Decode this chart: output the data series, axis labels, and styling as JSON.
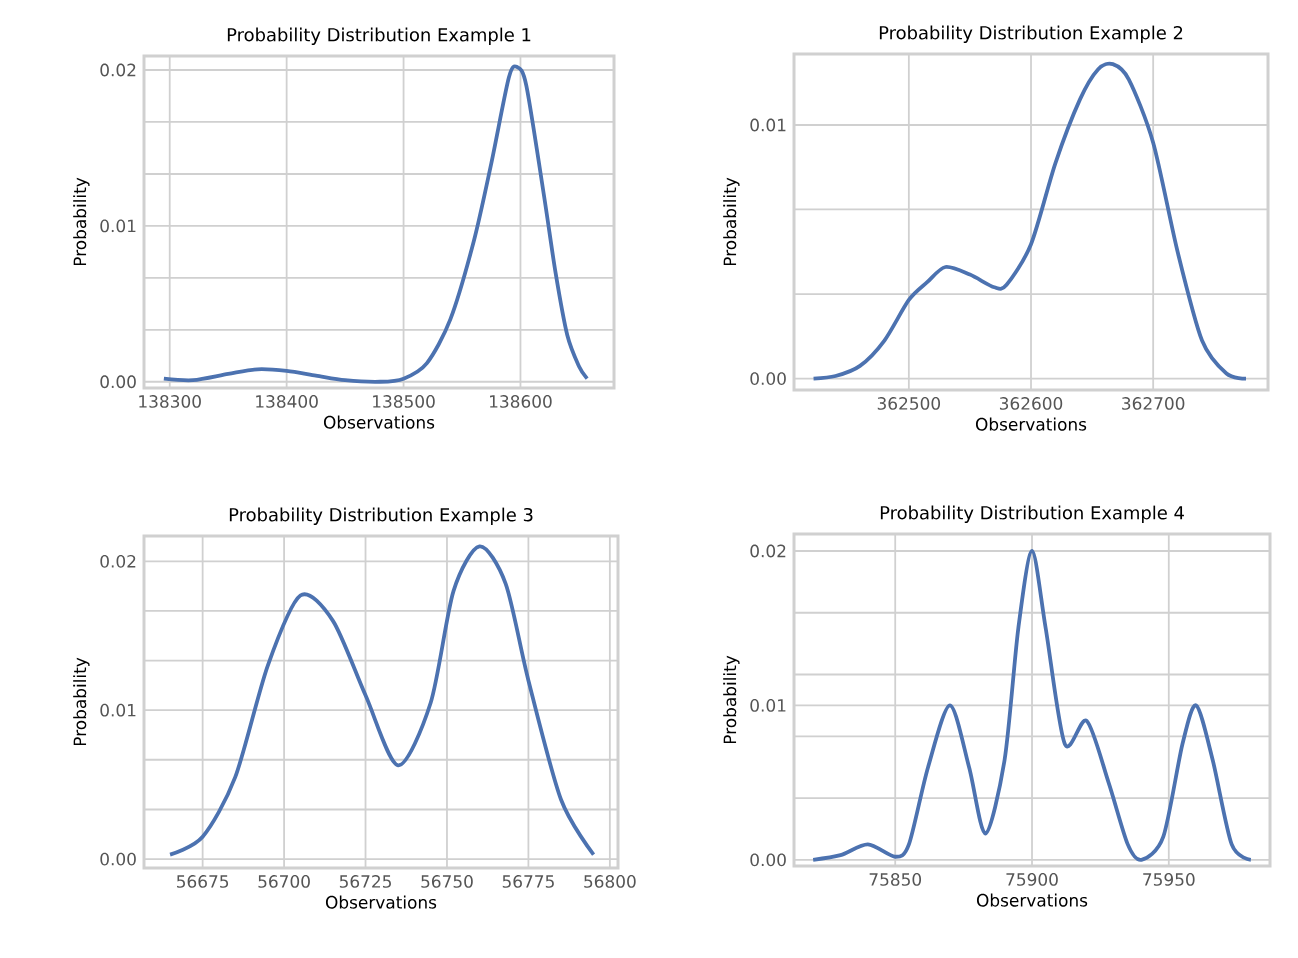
{
  "chart_data": [
    {
      "type": "line",
      "title": "Probability Distribution Example 1",
      "xlabel": "Observations",
      "ylabel": "Probability",
      "grid": true,
      "x": [
        138295,
        138320,
        138350,
        138375,
        138400,
        138425,
        138450,
        138480,
        138500,
        138520,
        138540,
        138560,
        138575,
        138590,
        138597,
        138605,
        138620,
        138630,
        138640,
        138650,
        138657
      ],
      "series": [
        {
          "color": "#4c72b0",
          "values": [
            0.0002,
            0.0001,
            0.0005,
            0.0008,
            0.0007,
            0.0004,
            0.0001,
            0.0,
            0.0002,
            0.0012,
            0.004,
            0.009,
            0.014,
            0.0195,
            0.0202,
            0.019,
            0.012,
            0.007,
            0.003,
            0.001,
            0.0002
          ]
        }
      ],
      "xlim": [
        138278,
        138680
      ],
      "ylim": [
        -0.0004,
        0.0209
      ],
      "xticks": [
        138300,
        138400,
        138500,
        138600
      ],
      "yticks": [
        {
          "value": 0,
          "label": "0.00"
        },
        {
          "value": 0.00333,
          "label": null
        },
        {
          "value": 0.00667,
          "label": null
        },
        {
          "value": 0.01,
          "label": "0.01"
        },
        {
          "value": 0.01333,
          "label": null
        },
        {
          "value": 0.01667,
          "label": null
        },
        {
          "value": 0.02,
          "label": "0.02"
        }
      ]
    },
    {
      "type": "line",
      "title": "Probability Distribution Example 2",
      "xlabel": "Observations",
      "ylabel": "Probability",
      "grid": true,
      "x": [
        362422,
        362440,
        362460,
        362480,
        362500,
        362515,
        362530,
        362550,
        362570,
        362580,
        362600,
        362620,
        362640,
        362655,
        362667,
        362680,
        362700,
        362720,
        362740,
        362760,
        362776
      ],
      "series": [
        {
          "color": "#4c72b0",
          "values": [
            0.0,
            0.0001,
            0.0005,
            0.0015,
            0.0031,
            0.0038,
            0.0044,
            0.0041,
            0.0036,
            0.0037,
            0.0053,
            0.0085,
            0.011,
            0.0122,
            0.0124,
            0.0118,
            0.0093,
            0.005,
            0.0015,
            0.0002,
            0.0
          ]
        }
      ],
      "xlim": [
        362406,
        362794
      ],
      "ylim": [
        -0.00045,
        0.0128
      ],
      "xticks": [
        362500,
        362600,
        362700
      ],
      "yticks": [
        {
          "value": 0,
          "label": "0.00"
        },
        {
          "value": 0.00333,
          "label": null
        },
        {
          "value": 0.00667,
          "label": null
        },
        {
          "value": 0.01,
          "label": "0.01"
        }
      ]
    },
    {
      "type": "line",
      "title": "Probability Distribution Example 3",
      "xlabel": "Observations",
      "ylabel": "Probability",
      "grid": true,
      "x": [
        56665,
        56675,
        56685,
        56695,
        56705,
        56715,
        56725,
        56735,
        56745,
        56752,
        56760,
        56768,
        56775,
        56785,
        56795
      ],
      "series": [
        {
          "color": "#4c72b0",
          "values": [
            0.0003,
            0.0015,
            0.0055,
            0.013,
            0.0177,
            0.016,
            0.011,
            0.0063,
            0.0105,
            0.018,
            0.021,
            0.0185,
            0.012,
            0.004,
            0.0003
          ]
        }
      ],
      "xlim": [
        56657,
        56802.5
      ],
      "ylim": [
        -0.0006,
        0.0217
      ],
      "xticks": [
        56675,
        56700,
        56725,
        56750,
        56775,
        56800
      ],
      "yticks": [
        {
          "value": 0,
          "label": "0.00"
        },
        {
          "value": 0.00333,
          "label": null
        },
        {
          "value": 0.00667,
          "label": null
        },
        {
          "value": 0.01,
          "label": "0.01"
        },
        {
          "value": 0.01333,
          "label": null
        },
        {
          "value": 0.01667,
          "label": null
        },
        {
          "value": 0.02,
          "label": "0.02"
        }
      ]
    },
    {
      "type": "line",
      "title": "Probability Distribution Example 4",
      "xlabel": "Observations",
      "ylabel": "Probability",
      "grid": true,
      "x": [
        75820,
        75830,
        75840,
        75850,
        75855,
        75862,
        75870,
        75877,
        75883,
        75890,
        75895,
        75900,
        75905,
        75912,
        75920,
        75928,
        75935,
        75940,
        75948,
        75955,
        75960,
        75966,
        75973,
        75980
      ],
      "series": [
        {
          "color": "#4c72b0",
          "values": [
            0.0,
            0.0003,
            0.001,
            0.0002,
            0.001,
            0.006,
            0.01,
            0.006,
            0.0017,
            0.0065,
            0.015,
            0.02,
            0.015,
            0.0075,
            0.009,
            0.005,
            0.001,
            0.0,
            0.0015,
            0.0075,
            0.01,
            0.0065,
            0.001,
            0.0
          ]
        }
      ],
      "xlim": [
        75813,
        75987
      ],
      "ylim": [
        -0.0004,
        0.0211
      ],
      "xticks": [
        75850,
        75900,
        75950
      ],
      "yticks": [
        {
          "value": 0,
          "label": "0.00"
        },
        {
          "value": 0.004,
          "label": null
        },
        {
          "value": 0.008,
          "label": null
        },
        {
          "value": 0.01,
          "label": "0.01"
        },
        {
          "value": 0.012,
          "label": null
        },
        {
          "value": 0.016,
          "label": null
        },
        {
          "value": 0.02,
          "label": "0.02"
        }
      ]
    }
  ]
}
